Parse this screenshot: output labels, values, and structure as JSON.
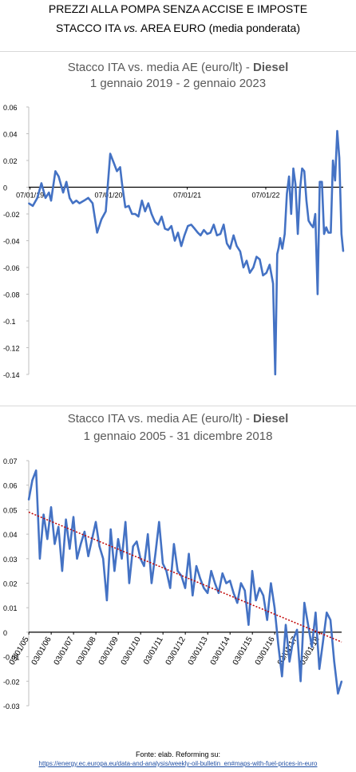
{
  "header": {
    "line1": "PREZZI ALLA POMPA SENZA ACCISE E IMPOSTE",
    "line2_prefix": "STACCO ITA ",
    "line2_vs": "vs.",
    "line2_suffix": "  AREA EURO (media ponderata)"
  },
  "footer": {
    "source": "Fonte: elab. Reforming su:",
    "url": "https://energy.ec.europa.eu/data-and-analysis/weekly-oil-bulletin_en#maps-with-fuel-prices-in-euro"
  },
  "colors": {
    "series": "#4472c4",
    "trend": "#c00000",
    "axis": "#000000",
    "title_text": "#595959"
  },
  "chart_data": [
    {
      "type": "line",
      "title": "Stacco ITA vs. media AE (euro/lt) - ",
      "title_bold": "Diesel",
      "subtitle": "1 gennaio 2019 - 2 gennaio 2023",
      "xlabel": "",
      "ylabel": "",
      "ylim": [
        -0.14,
        0.06
      ],
      "yticks": [
        0.06,
        0.04,
        0.02,
        0,
        -0.02,
        -0.04,
        -0.06,
        -0.08,
        -0.1,
        -0.12,
        -0.14
      ],
      "ytick_labels": [
        "0.06",
        "0.04",
        "0.02",
        "0",
        "-0.02",
        "-0.04",
        "-0.06",
        "-0.08",
        "-0.1",
        "-0.12",
        "-0.14"
      ],
      "xlim": [
        "2019-01-01",
        "2023-01-02"
      ],
      "xticks": [
        {
          "date": "2019-01-07",
          "label": "07/01/19"
        },
        {
          "date": "2020-01-07",
          "label": "07/01/20"
        },
        {
          "date": "2021-01-07",
          "label": "07/01/21"
        },
        {
          "date": "2022-01-07",
          "label": "07/01/22"
        }
      ],
      "grid": false,
      "series": [
        {
          "x": [
            "2019-01-01",
            "2019-01-20",
            "2019-02-10",
            "2019-03-01",
            "2019-03-20",
            "2019-04-05",
            "2019-04-15",
            "2019-05-05",
            "2019-05-20",
            "2019-06-10",
            "2019-06-25",
            "2019-07-10",
            "2019-07-25",
            "2019-08-10",
            "2019-08-25",
            "2019-09-15",
            "2019-10-05",
            "2019-10-25",
            "2019-11-15",
            "2019-12-05",
            "2019-12-25",
            "2020-01-15",
            "2020-02-01",
            "2020-02-15",
            "2020-03-01",
            "2020-03-10",
            "2020-03-25",
            "2020-04-10",
            "2020-04-25",
            "2020-05-10",
            "2020-05-25",
            "2020-06-10",
            "2020-06-25",
            "2020-07-10",
            "2020-07-25",
            "2020-08-10",
            "2020-08-25",
            "2020-09-10",
            "2020-09-25",
            "2020-10-10",
            "2020-10-25",
            "2020-11-10",
            "2020-11-25",
            "2020-12-10",
            "2020-12-25",
            "2021-01-10",
            "2021-01-25",
            "2021-02-10",
            "2021-02-25",
            "2021-03-10",
            "2021-03-25",
            "2021-04-10",
            "2021-04-25",
            "2021-05-10",
            "2021-05-25",
            "2021-06-10",
            "2021-06-25",
            "2021-07-10",
            "2021-07-25",
            "2021-08-10",
            "2021-08-25",
            "2021-09-10",
            "2021-09-25",
            "2021-10-10",
            "2021-10-25",
            "2021-11-10",
            "2021-11-25",
            "2021-12-10",
            "2021-12-25",
            "2022-01-10",
            "2022-01-25",
            "2022-02-10",
            "2022-02-20",
            "2022-03-01",
            "2022-03-08",
            "2022-03-15",
            "2022-03-25",
            "2022-04-05",
            "2022-04-15",
            "2022-04-25",
            "2022-05-05",
            "2022-05-15",
            "2022-05-25",
            "2022-06-05",
            "2022-06-15",
            "2022-06-25",
            "2022-07-05",
            "2022-07-15",
            "2022-07-25",
            "2022-08-05",
            "2022-08-15",
            "2022-08-25",
            "2022-09-05",
            "2022-09-15",
            "2022-09-25",
            "2022-10-05",
            "2022-10-15",
            "2022-10-25",
            "2022-11-05",
            "2022-11-15",
            "2022-11-25",
            "2022-12-05",
            "2022-12-15",
            "2022-12-25",
            "2023-01-02"
          ],
          "y": [
            -0.012,
            -0.014,
            -0.008,
            0.003,
            -0.008,
            -0.004,
            -0.01,
            0.012,
            0.008,
            -0.004,
            0.004,
            -0.008,
            -0.012,
            -0.01,
            -0.012,
            -0.01,
            -0.008,
            -0.012,
            -0.034,
            -0.024,
            -0.018,
            0.025,
            0.018,
            0.012,
            0.015,
            0.002,
            -0.015,
            -0.014,
            -0.02,
            -0.02,
            -0.022,
            -0.01,
            -0.018,
            -0.012,
            -0.02,
            -0.026,
            -0.028,
            -0.022,
            -0.031,
            -0.032,
            -0.029,
            -0.04,
            -0.034,
            -0.044,
            -0.036,
            -0.029,
            -0.028,
            -0.031,
            -0.034,
            -0.036,
            -0.032,
            -0.035,
            -0.034,
            -0.028,
            -0.036,
            -0.035,
            -0.028,
            -0.042,
            -0.046,
            -0.036,
            -0.044,
            -0.048,
            -0.06,
            -0.055,
            -0.064,
            -0.06,
            -0.052,
            -0.054,
            -0.066,
            -0.064,
            -0.058,
            -0.072,
            -0.14,
            -0.05,
            -0.045,
            -0.038,
            -0.046,
            -0.035,
            -0.005,
            0.008,
            -0.02,
            0.014,
            0.002,
            -0.035,
            -0.002,
            0.014,
            0.012,
            -0.01,
            -0.025,
            -0.028,
            -0.03,
            -0.02,
            -0.08,
            0.004,
            0.004,
            -0.035,
            -0.03,
            -0.034,
            -0.034,
            0.02,
            0.005,
            0.042,
            0.022,
            -0.035,
            -0.048
          ]
        }
      ]
    },
    {
      "type": "line",
      "title": "Stacco ITA vs. media AE (euro/lt) - ",
      "title_bold": "Diesel",
      "subtitle": "1 gennaio 2005 - 31 dicembre 2018",
      "xlabel": "",
      "ylabel": "",
      "ylim": [
        -0.03,
        0.07
      ],
      "yticks": [
        0.07,
        0.06,
        0.05,
        0.04,
        0.03,
        0.02,
        0.01,
        0,
        -0.01,
        -0.02,
        -0.03
      ],
      "ytick_labels": [
        "0.07",
        "0.06",
        "0.05",
        "0.04",
        "0.03",
        "0.02",
        "0.01",
        "0",
        "-0.01",
        "-0.02",
        "-0.03"
      ],
      "xlim": [
        "2005-01-01",
        "2018-12-31"
      ],
      "xticks": [
        {
          "date": "2005-01-03",
          "label": "03/01/05"
        },
        {
          "date": "2006-01-03",
          "label": "03/01/06"
        },
        {
          "date": "2007-01-03",
          "label": "03/01/07"
        },
        {
          "date": "2008-01-03",
          "label": "03/01/08"
        },
        {
          "date": "2009-01-03",
          "label": "03/01/09"
        },
        {
          "date": "2010-01-03",
          "label": "03/01/10"
        },
        {
          "date": "2011-01-03",
          "label": "03/01/11"
        },
        {
          "date": "2012-01-03",
          "label": "03/01/12"
        },
        {
          "date": "2013-01-03",
          "label": "03/01/13"
        },
        {
          "date": "2014-01-03",
          "label": "03/01/14"
        },
        {
          "date": "2015-01-03",
          "label": "03/01/15"
        },
        {
          "date": "2016-01-03",
          "label": "03/01/16"
        },
        {
          "date": "2017-01-03",
          "label": "03/01/17"
        },
        {
          "date": "2018-01-03",
          "label": "03/01/18"
        }
      ],
      "grid": false,
      "series": [
        {
          "x": [
            "2005-01-01",
            "2005-03-01",
            "2005-05-01",
            "2005-07-01",
            "2005-09-01",
            "2005-11-01",
            "2006-01-01",
            "2006-03-01",
            "2006-05-01",
            "2006-07-01",
            "2006-09-01",
            "2006-11-01",
            "2007-01-01",
            "2007-03-01",
            "2007-05-01",
            "2007-07-01",
            "2007-09-01",
            "2007-11-01",
            "2008-01-01",
            "2008-03-01",
            "2008-05-01",
            "2008-07-01",
            "2008-09-01",
            "2008-11-01",
            "2009-01-01",
            "2009-03-01",
            "2009-05-01",
            "2009-07-01",
            "2009-09-01",
            "2009-11-01",
            "2010-01-01",
            "2010-03-01",
            "2010-05-01",
            "2010-07-01",
            "2010-09-01",
            "2010-11-01",
            "2011-01-01",
            "2011-03-01",
            "2011-05-01",
            "2011-07-01",
            "2011-09-01",
            "2011-11-01",
            "2012-01-01",
            "2012-03-01",
            "2012-05-01",
            "2012-07-01",
            "2012-09-01",
            "2012-11-01",
            "2013-01-01",
            "2013-03-01",
            "2013-05-01",
            "2013-07-01",
            "2013-09-01",
            "2013-11-01",
            "2014-01-01",
            "2014-03-01",
            "2014-05-01",
            "2014-07-01",
            "2014-09-01",
            "2014-11-01",
            "2015-01-01",
            "2015-03-01",
            "2015-05-01",
            "2015-07-01",
            "2015-09-01",
            "2015-11-01",
            "2016-01-01",
            "2016-03-01",
            "2016-05-01",
            "2016-07-01",
            "2016-09-01",
            "2016-11-01",
            "2017-01-01",
            "2017-03-01",
            "2017-05-01",
            "2017-07-01",
            "2017-09-01",
            "2017-11-01",
            "2018-01-01",
            "2018-03-01",
            "2018-05-01",
            "2018-07-01",
            "2018-09-01",
            "2018-11-01",
            "2018-12-31"
          ],
          "y": [
            0.054,
            0.062,
            0.066,
            0.03,
            0.048,
            0.038,
            0.051,
            0.036,
            0.043,
            0.025,
            0.046,
            0.034,
            0.047,
            0.03,
            0.036,
            0.041,
            0.031,
            0.038,
            0.045,
            0.035,
            0.03,
            0.013,
            0.042,
            0.025,
            0.038,
            0.03,
            0.045,
            0.02,
            0.035,
            0.037,
            0.03,
            0.027,
            0.04,
            0.02,
            0.032,
            0.045,
            0.028,
            0.025,
            0.018,
            0.036,
            0.025,
            0.023,
            0.018,
            0.032,
            0.015,
            0.027,
            0.022,
            0.018,
            0.016,
            0.025,
            0.02,
            0.016,
            0.024,
            0.02,
            0.021,
            0.016,
            0.012,
            0.02,
            0.017,
            0.003,
            0.025,
            0.013,
            0.018,
            0.015,
            0.005,
            0.02,
            0.01,
            -0.005,
            -0.018,
            0.003,
            -0.012,
            -0.003,
            0.001,
            -0.02,
            0.012,
            0.003,
            -0.006,
            0.008,
            -0.015,
            -0.004,
            0.008,
            0.005,
            -0.012,
            -0.025,
            -0.02
          ]
        }
      ],
      "trend": {
        "style": "dotted",
        "start": [
          "2005-01-01",
          0.049
        ],
        "end": [
          "2018-12-31",
          -0.004
        ]
      }
    }
  ]
}
